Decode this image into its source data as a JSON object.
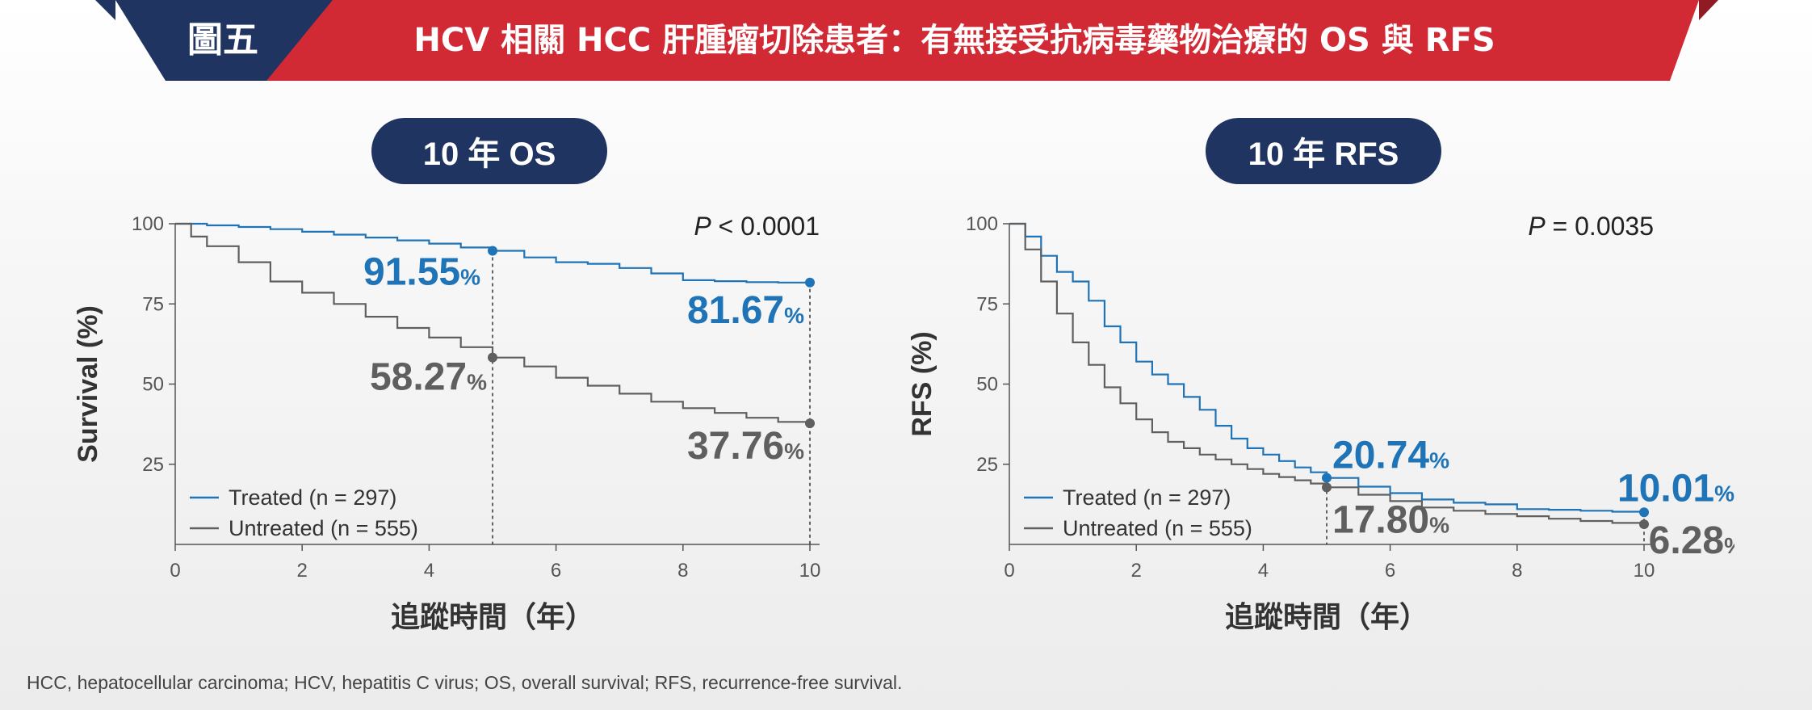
{
  "header": {
    "figure_label": "圖五",
    "title": "HCV 相關 HCC 肝腫瘤切除患者：有無接受抗病毒藥物治療的 OS 與 RFS",
    "colors": {
      "navy": "#1f3461",
      "red": "#d12a35",
      "dark_red": "#8f1b24"
    }
  },
  "chart_data": [
    {
      "type": "line",
      "panel_title": "10 年 OS",
      "ylabel": "Survival (%)",
      "xlabel": "追蹤時間（年）",
      "xlim": [
        0,
        10
      ],
      "ylim": [
        0,
        100
      ],
      "xticks": [
        0,
        2,
        4,
        6,
        8,
        10
      ],
      "yticks": [
        25,
        50,
        75,
        100
      ],
      "p_label": "P",
      "p_text": "< 0.0001",
      "legend": "bottom-left",
      "series": [
        {
          "name": "Treated (n = 297)",
          "color": "#1f73b7",
          "x": [
            0,
            0.5,
            1,
            1.5,
            2,
            2.5,
            3,
            3.5,
            4,
            4.5,
            5,
            5.5,
            6,
            6.5,
            7,
            7.5,
            8,
            8.5,
            9,
            9.5,
            10
          ],
          "y": [
            100,
            99.5,
            99,
            98.3,
            97.5,
            96.6,
            95.7,
            94.8,
            93.8,
            92.6,
            91.55,
            89.5,
            88,
            87.5,
            86.2,
            84.5,
            82.4,
            82.1,
            81.8,
            81.67,
            81.67
          ],
          "markers": [
            {
              "x": 5,
              "y": 91.55,
              "label": "91.55",
              "unit": "%"
            },
            {
              "x": 10,
              "y": 81.67,
              "label": "81.67",
              "unit": "%"
            }
          ]
        },
        {
          "name": "Untreated (n = 555)",
          "color": "#5f5f5f",
          "x": [
            0,
            0.25,
            0.5,
            1,
            1.5,
            2,
            2.5,
            3,
            3.5,
            4,
            4.5,
            5,
            5.5,
            6,
            6.5,
            7,
            7.5,
            8,
            8.5,
            9,
            9.5,
            10
          ],
          "y": [
            100,
            96,
            93,
            88,
            82,
            78.5,
            75,
            71,
            67.5,
            64.5,
            61.5,
            58.27,
            55.5,
            52,
            49.5,
            47,
            44.5,
            42.5,
            41,
            39.5,
            38.2,
            37.76
          ],
          "markers": [
            {
              "x": 5,
              "y": 58.27,
              "label": "58.27",
              "unit": "%"
            },
            {
              "x": 10,
              "y": 37.76,
              "label": "37.76",
              "unit": "%"
            }
          ]
        }
      ]
    },
    {
      "type": "line",
      "panel_title": "10 年 RFS",
      "ylabel": "RFS (%)",
      "xlabel": "追蹤時間（年）",
      "xlim": [
        0,
        10
      ],
      "ylim": [
        0,
        100
      ],
      "xticks": [
        0,
        2,
        4,
        6,
        8,
        10
      ],
      "yticks": [
        25,
        50,
        75,
        100
      ],
      "p_label": "P",
      "p_text": "= 0.0035",
      "legend": "bottom-left",
      "series": [
        {
          "name": "Treated (n = 297)",
          "color": "#1f73b7",
          "x": [
            0,
            0.25,
            0.5,
            0.75,
            1,
            1.25,
            1.5,
            1.75,
            2,
            2.25,
            2.5,
            2.75,
            3,
            3.25,
            3.5,
            3.75,
            4,
            4.25,
            4.5,
            4.75,
            5,
            5.5,
            6,
            6.5,
            7,
            7.5,
            8,
            8.5,
            9,
            9.5,
            10
          ],
          "y": [
            100,
            96,
            90,
            85,
            82,
            76,
            68,
            63,
            57,
            53,
            50,
            46,
            42,
            37,
            33,
            30,
            28,
            26,
            24,
            22.5,
            20.74,
            18,
            16,
            14,
            13,
            12.5,
            11,
            10.8,
            10.5,
            10.2,
            10.01
          ],
          "markers": [
            {
              "x": 5,
              "y": 20.74,
              "label": "20.74",
              "unit": "%"
            },
            {
              "x": 10,
              "y": 10.01,
              "label": "10.01",
              "unit": "%"
            }
          ]
        },
        {
          "name": "Untreated (n = 555)",
          "color": "#5f5f5f",
          "x": [
            0,
            0.25,
            0.5,
            0.75,
            1,
            1.25,
            1.5,
            1.75,
            2,
            2.25,
            2.5,
            2.75,
            3,
            3.25,
            3.5,
            3.75,
            4,
            4.25,
            4.5,
            4.75,
            5,
            5.5,
            6,
            6.5,
            7,
            7.5,
            8,
            8.5,
            9,
            9.5,
            10
          ],
          "y": [
            100,
            92,
            82,
            72,
            63,
            56,
            49,
            44,
            39,
            35,
            32,
            30,
            28,
            26.5,
            25,
            23.5,
            22,
            21,
            20,
            19,
            17.8,
            15.5,
            13.5,
            11.5,
            10.5,
            9.5,
            8.8,
            8,
            7.3,
            6.7,
            6.28
          ],
          "markers": [
            {
              "x": 5,
              "y": 17.8,
              "label": "17.80",
              "unit": "%"
            },
            {
              "x": 10,
              "y": 6.28,
              "label": "6.28",
              "unit": "%"
            }
          ]
        }
      ]
    }
  ],
  "footnote": "HCC, hepatocellular carcinoma; HCV, hepatitis C virus; OS, overall survival; RFS, recurrence-free survival."
}
